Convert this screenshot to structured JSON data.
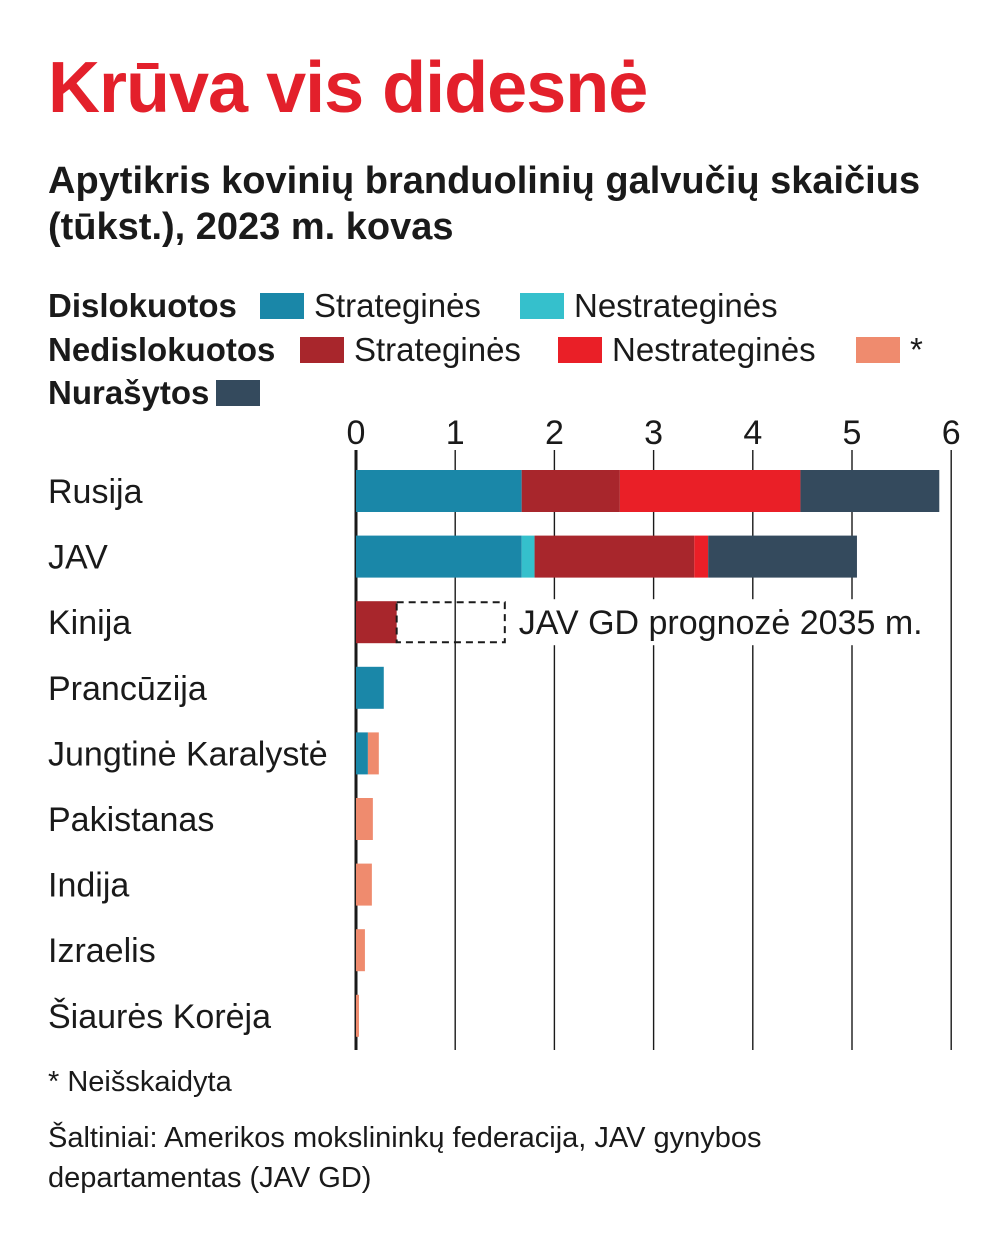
{
  "chart_data": {
    "type": "bar",
    "orientation": "horizontal",
    "stacked": true,
    "title": "Krūva vis didesnė",
    "subtitle": "Apytikris kovinių branduolinių galvučių skaičius (tūkst.), 2023 m. kovas",
    "xlim": [
      0,
      6
    ],
    "xticks": [
      "0",
      "1",
      "2",
      "3",
      "4",
      "5",
      "6"
    ],
    "grid": true,
    "categories": [
      "Rusija",
      "JAV",
      "Kinija",
      "Prancūzija",
      "Jungtinė Karalystė",
      "Pakistanas",
      "Indija",
      "Izraelis",
      "Šiaurės Korėja"
    ],
    "series": [
      {
        "name": "Strateginės",
        "group": "Dislokuotos",
        "color": "#1a87a8",
        "values": [
          1.67,
          1.67,
          0,
          0.28,
          0.12,
          0,
          0,
          0,
          0
        ]
      },
      {
        "name": "Nestrateginės",
        "group": "Dislokuotos",
        "color": "#35c0cc",
        "values": [
          0,
          0.13,
          0,
          0,
          0,
          0,
          0,
          0,
          0
        ]
      },
      {
        "name": "Strateginės",
        "group": "Nedislokuotos",
        "color": "#a8262c",
        "values": [
          0.99,
          1.61,
          0.41,
          0,
          0,
          0,
          0,
          0,
          0
        ]
      },
      {
        "name": "Nestrateginės",
        "group": "Nedislokuotos",
        "color": "#ea1f27",
        "values": [
          1.82,
          0.14,
          0,
          0,
          0,
          0,
          0,
          0,
          0
        ]
      },
      {
        "name": "*",
        "group": "Nedislokuotos",
        "color": "#ef8b6e",
        "values": [
          0,
          0,
          0,
          0,
          0.11,
          0.17,
          0.16,
          0.09,
          0.03
        ]
      },
      {
        "name": "",
        "group": "Nurašytos",
        "color": "#344a5d",
        "values": [
          1.4,
          1.5,
          0,
          0,
          0,
          0,
          0,
          0,
          0
        ]
      }
    ],
    "annotation": {
      "category": "Kinija",
      "from": 0.41,
      "to": 1.5,
      "label": "JAV GD prognozė 2035 m."
    }
  },
  "legend": {
    "groups": [
      {
        "label": "Dislokuotos",
        "items": [
          {
            "label": "Strateginės",
            "color": "#1a87a8"
          },
          {
            "label": "Nestrateginės",
            "color": "#35c0cc"
          }
        ]
      },
      {
        "label": "Nedislokuotos",
        "items": [
          {
            "label": "Strateginės",
            "color": "#a8262c"
          },
          {
            "label": "Nestrateginės",
            "color": "#ea1f27"
          },
          {
            "label": "*",
            "color": "#ef8b6e"
          }
        ]
      },
      {
        "label": "Nurašytos",
        "items": [
          {
            "label": "",
            "color": "#344a5d"
          }
        ]
      }
    ]
  },
  "footnote": "* Neišskaidyta",
  "source": "Šaltiniai: Amerikos mokslininkų federacija, JAV gynybos departamentas (JAV GD)"
}
